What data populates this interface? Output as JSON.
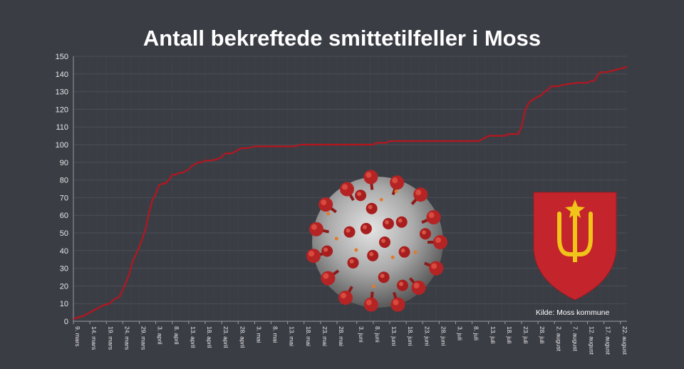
{
  "title": "Antall bekreftede smittetilfeller i Moss",
  "source": "Kilde: Moss kommune",
  "virus_image": "coronavirus-illustration",
  "logo": "moss-coat-of-arms",
  "colors": {
    "line": "#b5161f",
    "background": "#3b3d45",
    "grid": "#4a4c55",
    "shield": "#c4252c",
    "emblem": "#f0c419"
  },
  "chart_data": {
    "type": "line",
    "title": "Antall bekreftede smittetilfeller i Moss",
    "xlabel": "",
    "ylabel": "",
    "ylim": [
      0,
      150
    ],
    "yticks": [
      0,
      10,
      20,
      30,
      40,
      50,
      60,
      70,
      80,
      90,
      100,
      110,
      120,
      130,
      140,
      150
    ],
    "grid": true,
    "x_range": [
      "9. mars",
      "24. august"
    ],
    "xticks": [
      "9. mars",
      "14. mars",
      "19. mars",
      "24. mars",
      "29. mars",
      "3. april",
      "8. april",
      "13. april",
      "18. april",
      "23. april",
      "28. april",
      "3. mai",
      "8. mai",
      "13. mai",
      "18. mai",
      "23. mai",
      "28. mai",
      "3. juni",
      "8. juni",
      "13. juni",
      "18. juni",
      "23. juni",
      "28. juni",
      "3. juli",
      "8. juli",
      "13. juli",
      "18. juli",
      "23. juli",
      "28. juli",
      "2. august",
      "7. august",
      "12. august",
      "17. august",
      "22. august"
    ],
    "series": [
      {
        "points": [
          [
            "9. mars",
            1
          ],
          [
            "10. mars",
            2
          ],
          [
            "12. mars",
            3
          ],
          [
            "13. mars",
            4
          ],
          [
            "15. mars",
            6
          ],
          [
            "16. mars",
            7
          ],
          [
            "17. mars",
            8
          ],
          [
            "18. mars",
            9
          ],
          [
            "20. mars",
            10
          ],
          [
            "21. mars",
            12
          ],
          [
            "22. mars",
            13
          ],
          [
            "23. mars",
            14
          ],
          [
            "24. mars",
            18
          ],
          [
            "25. mars",
            22
          ],
          [
            "26. mars",
            27
          ],
          [
            "27. mars",
            34
          ],
          [
            "28. mars",
            38
          ],
          [
            "29. mars",
            42
          ],
          [
            "30. mars",
            47
          ],
          [
            "31. mars",
            53
          ],
          [
            "1. april",
            62
          ],
          [
            "2. april",
            69
          ],
          [
            "3. april",
            72
          ],
          [
            "4. april",
            77
          ],
          [
            "5. april",
            78
          ],
          [
            "6. april",
            78
          ],
          [
            "7. april",
            80
          ],
          [
            "8. april",
            83
          ],
          [
            "9. april",
            83
          ],
          [
            "10. april",
            84
          ],
          [
            "11. april",
            84
          ],
          [
            "12. april",
            85
          ],
          [
            "13. april",
            86
          ],
          [
            "14. april",
            88
          ],
          [
            "15. april",
            89
          ],
          [
            "16. april",
            90
          ],
          [
            "17. april",
            90
          ],
          [
            "18. april",
            91
          ],
          [
            "20. april",
            91
          ],
          [
            "22. april",
            92
          ],
          [
            "23. april",
            93
          ],
          [
            "24. april",
            95
          ],
          [
            "26. april",
            95
          ],
          [
            "27. april",
            96
          ],
          [
            "28. april",
            97
          ],
          [
            "29. april",
            98
          ],
          [
            "1. mai",
            98
          ],
          [
            "3. mai",
            99
          ],
          [
            "15. mai",
            99
          ],
          [
            "17. mai",
            100
          ],
          [
            "8. juni",
            100
          ],
          [
            "9. juni",
            101
          ],
          [
            "12. juni",
            101
          ],
          [
            "13. juni",
            102
          ],
          [
            "10. juli",
            102
          ],
          [
            "11. juli",
            103
          ],
          [
            "12. juli",
            104
          ],
          [
            "13. juli",
            105
          ],
          [
            "16. juli",
            105
          ],
          [
            "18. juli",
            105
          ],
          [
            "19. juli",
            106
          ],
          [
            "22. juli",
            106
          ],
          [
            "23. juli",
            110
          ],
          [
            "24. juli",
            119
          ],
          [
            "25. juli",
            123
          ],
          [
            "26. juli",
            125
          ],
          [
            "27. juli",
            126
          ],
          [
            "28. juli",
            127
          ],
          [
            "29. juli",
            128
          ],
          [
            "30. juli",
            130
          ],
          [
            "31. juli",
            131
          ],
          [
            "1. august",
            133
          ],
          [
            "3. august",
            133
          ],
          [
            "5. august",
            134
          ],
          [
            "9. august",
            135
          ],
          [
            "12. august",
            135
          ],
          [
            "13. august",
            136
          ],
          [
            "14. august",
            136
          ],
          [
            "15. august",
            139
          ],
          [
            "16. august",
            141
          ],
          [
            "18. august",
            141
          ],
          [
            "20. august",
            142
          ],
          [
            "22. august",
            143
          ],
          [
            "24. august",
            144
          ]
        ]
      }
    ]
  }
}
